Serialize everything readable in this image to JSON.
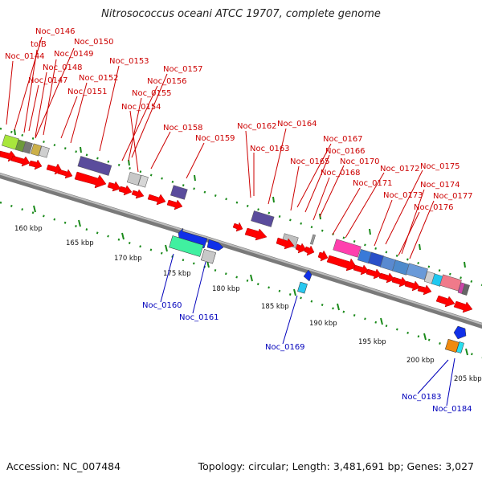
{
  "title": "Nitrosococcus oceani ATCC 19707, complete genome",
  "footer": {
    "accession": "Accession: NC_007484",
    "summary": "Topology: circular; Length: 3,481,691 bp; Genes: 3,027"
  },
  "colors": {
    "forward_label": "#cc0000",
    "reverse_label": "#0000bb",
    "gene": "#ff0000",
    "tick": "#1a8a1a"
  },
  "kbp_ticks": [
    {
      "text": "160 kbp"
    },
    {
      "text": "165 kbp"
    },
    {
      "text": "170 kbp"
    },
    {
      "text": "175 kbp"
    },
    {
      "text": "180 kbp"
    },
    {
      "text": "185 kbp"
    },
    {
      "text": "190 kbp"
    },
    {
      "text": "195 kbp"
    },
    {
      "text": "200 kbp"
    },
    {
      "text": "205 kbp"
    }
  ],
  "forward_labels": [
    {
      "text": "Noc_0146"
    },
    {
      "text": "tolB"
    },
    {
      "text": "Noc_0150"
    },
    {
      "text": "Noc_0144"
    },
    {
      "text": "Noc_0149"
    },
    {
      "text": "Noc_0148"
    },
    {
      "text": "Noc_0147"
    },
    {
      "text": "Noc_0153"
    },
    {
      "text": "Noc_0152"
    },
    {
      "text": "Noc_0151"
    },
    {
      "text": "Noc_0157"
    },
    {
      "text": "Noc_0156"
    },
    {
      "text": "Noc_0155"
    },
    {
      "text": "Noc_0154"
    },
    {
      "text": "Noc_0158"
    },
    {
      "text": "Noc_0159"
    },
    {
      "text": "Noc_0162"
    },
    {
      "text": "Noc_0164"
    },
    {
      "text": "Noc_0163"
    },
    {
      "text": "Noc_0167"
    },
    {
      "text": "Noc_0166"
    },
    {
      "text": "Noc_0165"
    },
    {
      "text": "Noc_0170"
    },
    {
      "text": "Noc_0168"
    },
    {
      "text": "Noc_0172"
    },
    {
      "text": "Noc_0175"
    },
    {
      "text": "Noc_0171"
    },
    {
      "text": "Noc_0174"
    },
    {
      "text": "Noc_0173"
    },
    {
      "text": "Noc_0177"
    },
    {
      "text": "Noc_0176"
    }
  ],
  "reverse_labels": [
    {
      "text": "Noc_0160"
    },
    {
      "text": "Noc_0161"
    },
    {
      "text": "Noc_0169"
    },
    {
      "text": "Noc_0183"
    },
    {
      "text": "Noc_0184"
    }
  ]
}
